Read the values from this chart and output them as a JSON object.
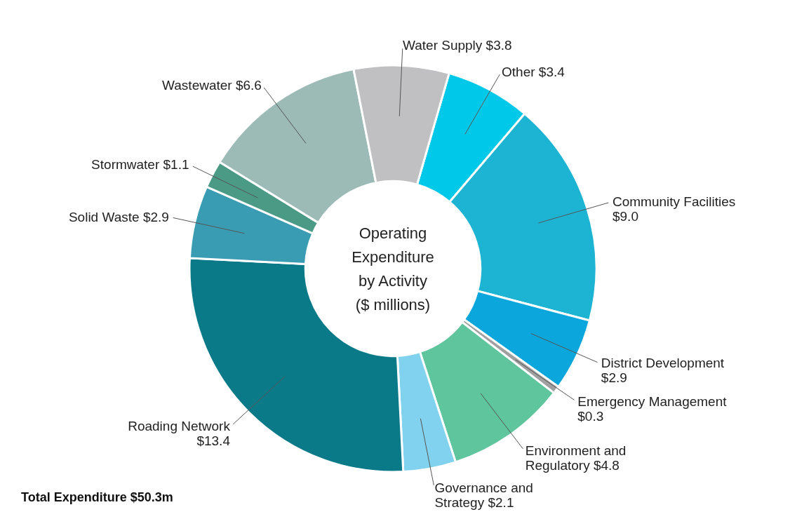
{
  "chart_data": {
    "type": "donut",
    "title": "Operating Expenditure by Activity ($ millions)",
    "categories": [
      "Other",
      "Community Facilities",
      "District Development",
      "Emergency Management",
      "Environment and Regulatory",
      "Governance and Strategy",
      "Roading Network",
      "Solid Waste",
      "Stormwater",
      "Wastewater",
      "Water Supply"
    ],
    "values": [
      3.4,
      9.0,
      2.9,
      0.3,
      4.8,
      2.1,
      13.4,
      2.9,
      1.1,
      6.6,
      3.8
    ],
    "value_labels": [
      "$3.4",
      "$9.0",
      "$2.9",
      "$0.3",
      "$4.8",
      "$2.1",
      "$13.4",
      "$2.9",
      "$1.1",
      "$6.6",
      "$3.8"
    ],
    "colors": [
      "#00c8e8",
      "#1cb4d2",
      "#0aa6dc",
      "#a0a0a0",
      "#5ec59c",
      "#80d2ee",
      "#0a7a88",
      "#3a9cb2",
      "#4a9a86",
      "#9cbab6",
      "#c0c0c2"
    ],
    "annotations": [
      "Total Expenditure   $50.3m"
    ],
    "legend": false
  }
}
